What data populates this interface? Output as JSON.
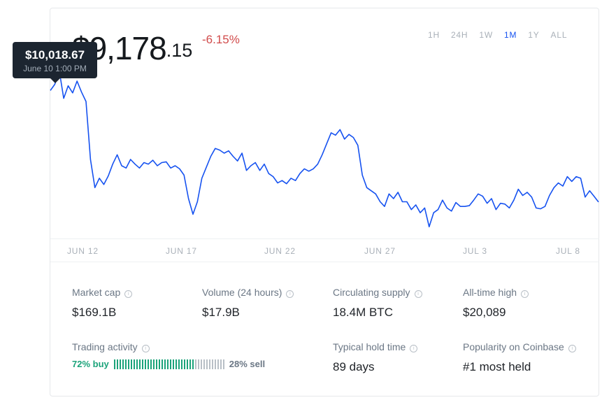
{
  "price": {
    "dollars": "$9,178",
    "cents": ".15",
    "change": "-6.15%"
  },
  "time_ranges": [
    "1H",
    "24H",
    "1W",
    "1M",
    "1Y",
    "ALL"
  ],
  "active_range": "1M",
  "tooltip": {
    "value": "$10,018.67",
    "date": "June 10 1:00 PM"
  },
  "chart_data": {
    "type": "line",
    "x_labels": [
      "JUN 12",
      "JUN 17",
      "JUN 22",
      "JUN 27",
      "JUL 3",
      "JUL 8"
    ],
    "series": [
      {
        "values": [
          9890,
          9930,
          10018.67,
          9840,
          9920,
          9875,
          9950,
          9880,
          9820,
          9450,
          9270,
          9330,
          9290,
          9345,
          9420,
          9480,
          9410,
          9395,
          9450,
          9420,
          9395,
          9430,
          9420,
          9445,
          9410,
          9430,
          9435,
          9395,
          9410,
          9390,
          9350,
          9200,
          9100,
          9180,
          9330,
          9400,
          9470,
          9520,
          9510,
          9490,
          9505,
          9470,
          9440,
          9490,
          9380,
          9410,
          9430,
          9380,
          9420,
          9360,
          9340,
          9300,
          9315,
          9295,
          9330,
          9315,
          9360,
          9390,
          9375,
          9390,
          9420,
          9480,
          9550,
          9620,
          9605,
          9640,
          9580,
          9610,
          9590,
          9540,
          9350,
          9270,
          9250,
          9230,
          9180,
          9150,
          9230,
          9200,
          9240,
          9180,
          9180,
          9130,
          9160,
          9110,
          9140,
          9020,
          9110,
          9130,
          9190,
          9140,
          9120,
          9175,
          9150,
          9150,
          9155,
          9190,
          9230,
          9215,
          9170,
          9200,
          9130,
          9170,
          9165,
          9140,
          9190,
          9260,
          9220,
          9240,
          9210,
          9140,
          9135,
          9150,
          9220,
          9270,
          9300,
          9280,
          9340,
          9310,
          9340,
          9330,
          9210,
          9250,
          9215,
          9178.15
        ],
        "color": "#1652f0"
      }
    ],
    "ylim": [
      8950,
      10200
    ]
  },
  "stats": [
    {
      "label": "Market cap",
      "value": "$169.1B"
    },
    {
      "label": "Volume (24 hours)",
      "value": "$17.9B"
    },
    {
      "label": "Circulating supply",
      "value": "18.4M BTC"
    },
    {
      "label": "All-time high",
      "value": "$20,089"
    },
    {
      "label": "Trading activity",
      "value": ""
    },
    {
      "label": "Typical hold time",
      "value": "89 days"
    },
    {
      "label": "Popularity on Coinbase",
      "value": "#1 most held"
    }
  ],
  "trading": {
    "buy_text": "72% buy",
    "sell_text": "28% sell",
    "buy_percent": 72
  },
  "colors": {
    "accent": "#1652f0",
    "negative": "#d14b4b",
    "buy": "#1ba37a",
    "sell_bar": "#b8bfc6"
  }
}
